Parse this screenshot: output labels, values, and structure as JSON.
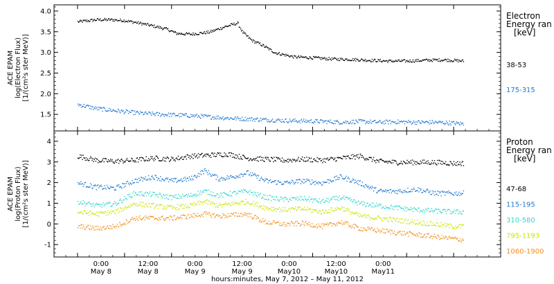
{
  "chart_data": [
    {
      "type": "scatter",
      "panel": "electron",
      "ylabel_lines": [
        "ACE EPAM",
        "log(Electron Flux)",
        "[1/(cm²s ster MeV)]"
      ],
      "ylim": [
        1.1,
        4.15
      ],
      "yticks": [
        1.5,
        2.0,
        2.5,
        3.0,
        3.5,
        4.0
      ],
      "ytick_labels": [
        "1.5",
        "2.0",
        "2.5",
        "3.0",
        "3.5",
        "4.0"
      ],
      "legend_title": [
        "Electron",
        "Energy ran",
        "[keV]"
      ],
      "legend_placement": "right",
      "series": [
        {
          "name": "38-53",
          "color": "#000000",
          "x": [
            0.0,
            0.2,
            0.35,
            0.5,
            0.65,
            0.8,
            0.95,
            1.05,
            1.2,
            1.4,
            1.55,
            1.7,
            1.75,
            1.85,
            1.95,
            2.1,
            2.3,
            2.5,
            2.7,
            2.9,
            3.1,
            3.3,
            3.5,
            3.7,
            3.9,
            4.1
          ],
          "y": [
            3.75,
            3.8,
            3.8,
            3.78,
            3.72,
            3.65,
            3.57,
            3.47,
            3.45,
            3.5,
            3.62,
            3.72,
            3.5,
            3.3,
            3.2,
            3.0,
            2.9,
            2.88,
            2.85,
            2.84,
            2.82,
            2.8,
            2.8,
            2.82,
            2.83,
            2.8
          ]
        },
        {
          "name": "175-315",
          "color": "#1f78d0",
          "x": [
            0.0,
            0.2,
            0.4,
            0.6,
            0.8,
            1.0,
            1.2,
            1.4,
            1.6,
            1.8,
            2.0,
            2.2,
            2.4,
            2.6,
            2.8,
            3.0,
            3.2,
            3.4,
            3.6,
            3.8,
            4.0,
            4.1
          ],
          "y": [
            1.75,
            1.65,
            1.6,
            1.55,
            1.52,
            1.5,
            1.48,
            1.45,
            1.42,
            1.4,
            1.38,
            1.36,
            1.35,
            1.34,
            1.32,
            1.34,
            1.32,
            1.33,
            1.32,
            1.32,
            1.3,
            1.28
          ]
        }
      ]
    },
    {
      "type": "scatter",
      "panel": "proton",
      "ylabel_lines": [
        "ACE EPAM",
        "log(Proton Flux)",
        "[1/(cm²s ster MeV)]"
      ],
      "ylim": [
        -1.6,
        4.5
      ],
      "yticks": [
        -1,
        0,
        1,
        2,
        3,
        4
      ],
      "ytick_labels": [
        "-1",
        "0",
        "1",
        "2",
        "3",
        "4"
      ],
      "legend_title": [
        "Proton",
        "Energy ran",
        "[keV]"
      ],
      "legend_placement": "right",
      "series": [
        {
          "name": "47-68",
          "color": "#000000",
          "x": [
            0.0,
            0.2,
            0.4,
            0.6,
            0.8,
            1.0,
            1.2,
            1.4,
            1.6,
            1.8,
            2.0,
            2.2,
            2.4,
            2.6,
            2.8,
            3.0,
            3.2,
            3.4,
            3.6,
            3.8,
            4.0,
            4.1
          ],
          "y": [
            3.3,
            3.1,
            3.05,
            3.1,
            3.2,
            3.15,
            3.3,
            3.35,
            3.4,
            3.2,
            3.15,
            3.1,
            3.15,
            3.1,
            3.2,
            3.3,
            3.05,
            3.0,
            3.0,
            3.0,
            2.95,
            2.95
          ]
        },
        {
          "name": "115-195",
          "color": "#1f78d0",
          "x": [
            0.0,
            0.2,
            0.4,
            0.6,
            0.8,
            1.0,
            1.2,
            1.35,
            1.5,
            1.65,
            1.8,
            2.0,
            2.2,
            2.4,
            2.6,
            2.8,
            3.0,
            3.2,
            3.4,
            3.6,
            3.8,
            4.0,
            4.1
          ],
          "y": [
            2.0,
            1.8,
            1.75,
            2.1,
            2.3,
            2.1,
            2.2,
            2.6,
            2.2,
            2.3,
            2.5,
            2.1,
            2.0,
            2.1,
            2.0,
            2.3,
            2.0,
            1.6,
            1.6,
            1.7,
            1.5,
            1.5,
            1.5
          ]
        },
        {
          "name": "310-580",
          "color": "#33d6cc",
          "x": [
            0.0,
            0.2,
            0.4,
            0.6,
            0.8,
            1.0,
            1.2,
            1.35,
            1.5,
            1.65,
            1.8,
            2.0,
            2.2,
            2.4,
            2.6,
            2.8,
            3.0,
            3.2,
            3.4,
            3.6,
            3.8,
            4.0,
            4.1
          ],
          "y": [
            1.1,
            0.9,
            1.0,
            1.5,
            1.45,
            1.3,
            1.4,
            1.6,
            1.4,
            1.5,
            1.6,
            1.3,
            1.2,
            1.25,
            1.1,
            1.3,
            1.0,
            0.9,
            0.8,
            0.7,
            0.65,
            0.6,
            0.6
          ]
        },
        {
          "name": "795-1193",
          "color": "#c8e600",
          "x": [
            0.0,
            0.2,
            0.4,
            0.6,
            0.8,
            1.0,
            1.2,
            1.35,
            1.5,
            1.65,
            1.8,
            2.0,
            2.2,
            2.4,
            2.6,
            2.8,
            3.0,
            3.2,
            3.4,
            3.6,
            3.8,
            4.0,
            4.1
          ],
          "y": [
            0.6,
            0.5,
            0.6,
            1.0,
            0.9,
            0.8,
            0.9,
            1.1,
            0.9,
            1.0,
            1.1,
            0.8,
            0.7,
            0.75,
            0.6,
            0.8,
            0.4,
            0.3,
            0.2,
            0.1,
            0.0,
            -0.1,
            -0.1
          ]
        },
        {
          "name": "1060-1900",
          "color": "#f0901e",
          "x": [
            0.0,
            0.2,
            0.4,
            0.6,
            0.8,
            1.0,
            1.2,
            1.35,
            1.5,
            1.65,
            1.8,
            2.0,
            2.2,
            2.4,
            2.6,
            2.8,
            3.0,
            3.2,
            3.4,
            3.6,
            3.8,
            4.0,
            4.1
          ],
          "y": [
            -0.1,
            -0.2,
            -0.1,
            0.3,
            0.3,
            0.3,
            0.4,
            0.5,
            0.4,
            0.45,
            0.5,
            0.1,
            0.0,
            0.05,
            -0.1,
            0.1,
            -0.2,
            -0.3,
            -0.4,
            -0.5,
            -0.6,
            -0.7,
            -0.75
          ]
        }
      ]
    }
  ],
  "x_axis": {
    "xlim": [
      -0.25,
      4.5
    ],
    "ticks": [
      0,
      0.5,
      1,
      1.5,
      2,
      2.5,
      3,
      3.5,
      4,
      4.5
    ],
    "labels": [
      {
        "line1": "0:00",
        "line2": "May 8"
      },
      {
        "line1": "12:00",
        "line2": "May 8"
      },
      {
        "line1": "0:00",
        "line2": "May 9"
      },
      {
        "line1": "12:00",
        "line2": "May 9"
      },
      {
        "line1": "0:00",
        "line2": "May10"
      },
      {
        "line1": "12:00",
        "line2": "May10"
      },
      {
        "line1": "0:00",
        "line2": "May11"
      }
    ],
    "label_ticks": [
      0.25,
      0.75,
      1.25,
      1.75,
      2.25,
      2.75,
      3.25
    ],
    "title": "hours:minutes, May  7, 2012 – May 11, 2012"
  }
}
